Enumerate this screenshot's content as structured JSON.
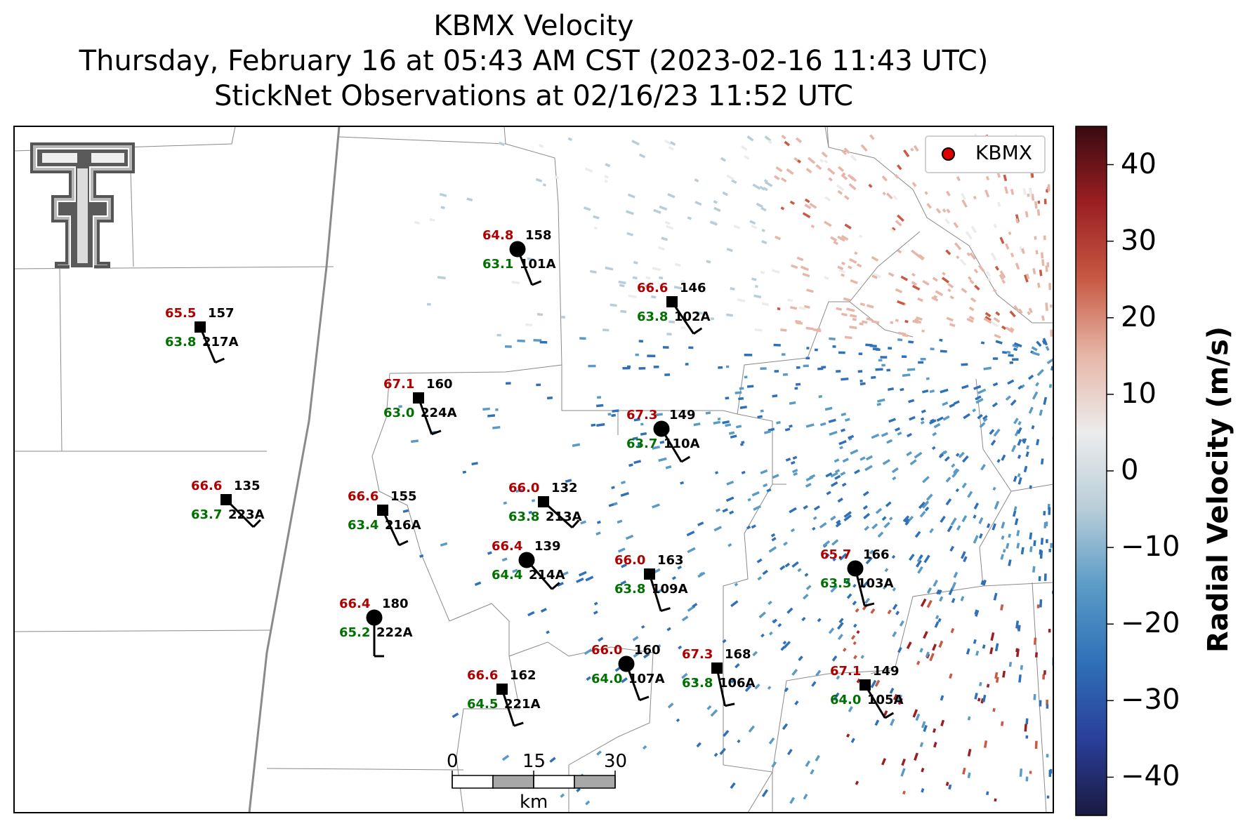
{
  "title": {
    "line1": "KBMX Velocity",
    "line2": "Thursday, February 16 at 05:43 AM CST (2023-02-16 11:43 UTC)",
    "line3": "StickNet Observations at 02/16/23 11:52 UTC"
  },
  "legend": {
    "label": "KBMX",
    "marker_color": "#e00000"
  },
  "colorbar": {
    "title": "Radial Velocity (m/s)",
    "ticks": [
      "40",
      "30",
      "20",
      "10",
      "0",
      "−10",
      "−20",
      "−30",
      "−40"
    ],
    "tick_values": [
      40,
      30,
      20,
      10,
      0,
      -10,
      -20,
      -30,
      -40
    ],
    "range": [
      -45,
      45
    ],
    "colors": [
      "#1a1a40",
      "#2a3f9a",
      "#2f70b8",
      "#5a9bc6",
      "#b8cdd8",
      "#ececec",
      "#e6b7a8",
      "#c85a44",
      "#9a1f22",
      "#3a0a12"
    ]
  },
  "scalebar": {
    "labels": [
      "0",
      "15",
      "30"
    ],
    "unit": "km"
  },
  "logo": {
    "name": "texas-tech-double-t-logo"
  },
  "stations": [
    {
      "id": "101A",
      "temp": "64.8",
      "dew": "63.1",
      "dir": "158",
      "marker": "circle"
    },
    {
      "id": "102A",
      "temp": "66.6",
      "dew": "63.8",
      "dir": "146",
      "marker": "square"
    },
    {
      "id": "217A",
      "temp": "65.5",
      "dew": "63.8",
      "dir": "157",
      "marker": "square"
    },
    {
      "id": "224A",
      "temp": "67.1",
      "dew": "63.0",
      "dir": "160",
      "marker": "square"
    },
    {
      "id": "110A",
      "temp": "67.3",
      "dew": "63.7",
      "dir": "149",
      "marker": "circle"
    },
    {
      "id": "223A",
      "temp": "66.6",
      "dew": "63.7",
      "dir": "135",
      "marker": "square"
    },
    {
      "id": "216A",
      "temp": "66.6",
      "dew": "63.4",
      "dir": "155",
      "marker": "square"
    },
    {
      "id": "213A",
      "temp": "66.0",
      "dew": "63.8",
      "dir": "132",
      "marker": "square"
    },
    {
      "id": "214A",
      "temp": "66.4",
      "dew": "64.4",
      "dir": "139",
      "marker": "circle"
    },
    {
      "id": "109A",
      "temp": "66.0",
      "dew": "63.8",
      "dir": "163",
      "marker": "square"
    },
    {
      "id": "103A",
      "temp": "65.7",
      "dew": "63.5",
      "dir": "166",
      "marker": "circle"
    },
    {
      "id": "222A",
      "temp": "66.4",
      "dew": "65.2",
      "dir": "180",
      "marker": "circle"
    },
    {
      "id": "107A",
      "temp": "66.0",
      "dew": "64.0",
      "dir": "160",
      "marker": "circle"
    },
    {
      "id": "106A",
      "temp": "67.3",
      "dew": "63.8",
      "dir": "168",
      "marker": "square"
    },
    {
      "id": "221A",
      "temp": "66.6",
      "dew": "64.5",
      "dir": "162",
      "marker": "square"
    },
    {
      "id": "105A",
      "temp": "67.1",
      "dew": "64.0",
      "dir": "149",
      "marker": "square"
    }
  ]
}
